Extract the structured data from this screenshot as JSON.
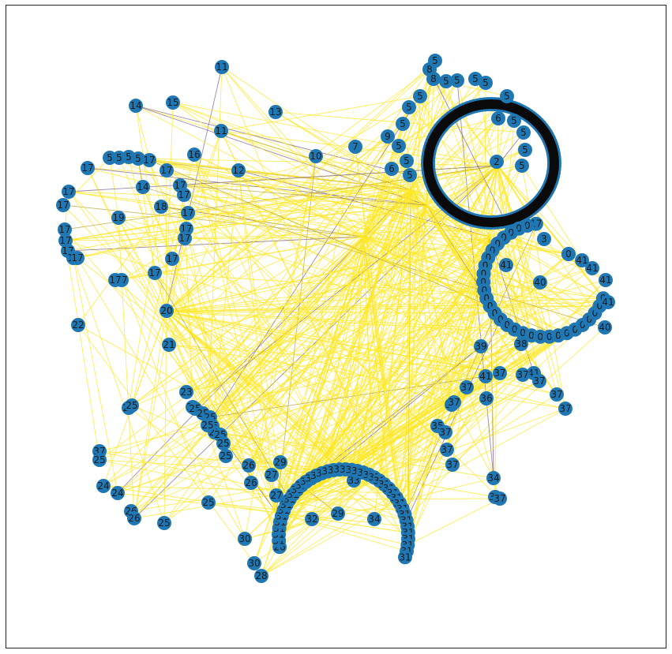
{
  "colors": {
    "background": "#ffffff",
    "frame": "#222222",
    "node": "#1f77b4",
    "edge_main": "#fde725",
    "edge_alt1": "#7b5f8f",
    "edge_alt2": "#b5a13a"
  },
  "nodes": [
    {
      "label": "11"
    },
    {
      "label": "11"
    },
    {
      "label": "14"
    },
    {
      "label": "15"
    },
    {
      "label": "13"
    },
    {
      "label": "16"
    },
    {
      "label": "12"
    },
    {
      "label": "10"
    },
    {
      "label": "7"
    },
    {
      "label": "9"
    },
    {
      "label": "6"
    },
    {
      "label": "8"
    },
    {
      "label": "8"
    },
    {
      "label": "6"
    },
    {
      "label": "2"
    },
    {
      "label": "3"
    },
    {
      "label": "38"
    },
    {
      "label": "39"
    },
    {
      "label": "36"
    },
    {
      "label": "35"
    },
    {
      "label": "34"
    },
    {
      "label": "34"
    },
    {
      "label": "33"
    },
    {
      "label": "32"
    },
    {
      "label": "29"
    },
    {
      "label": "29"
    },
    {
      "label": "27"
    },
    {
      "label": "27"
    },
    {
      "label": "28"
    },
    {
      "label": "30"
    },
    {
      "label": "30"
    },
    {
      "label": "24"
    },
    {
      "label": "24"
    },
    {
      "label": "22"
    },
    {
      "label": "23"
    },
    {
      "label": "21"
    },
    {
      "label": "20"
    },
    {
      "label": "19"
    },
    {
      "label": "18"
    },
    {
      "label": "14"
    },
    {
      "label": "40"
    },
    {
      "label": "40"
    },
    {
      "label": "41"
    },
    {
      "label": "41"
    },
    {
      "label": "41"
    },
    {
      "label": "5"
    },
    {
      "label": "5"
    },
    {
      "label": "5"
    },
    {
      "label": "5"
    },
    {
      "label": "5"
    },
    {
      "label": "5"
    },
    {
      "label": "5"
    },
    {
      "label": "5"
    },
    {
      "label": "5"
    },
    {
      "label": "5"
    },
    {
      "label": "5"
    },
    {
      "label": "5"
    },
    {
      "label": "5"
    },
    {
      "label": "5"
    },
    {
      "label": "5"
    },
    {
      "label": "5"
    },
    {
      "label": "5"
    },
    {
      "label": "5"
    },
    {
      "label": "5"
    },
    {
      "label": "5"
    },
    {
      "label": "17"
    },
    {
      "label": "17"
    },
    {
      "label": "17"
    },
    {
      "label": "17"
    },
    {
      "label": "17"
    },
    {
      "label": "17"
    },
    {
      "label": "17"
    },
    {
      "label": "17"
    },
    {
      "label": "17"
    },
    {
      "label": "17"
    },
    {
      "label": "17"
    },
    {
      "label": "17"
    },
    {
      "label": "17"
    },
    {
      "label": "17"
    },
    {
      "label": "17"
    },
    {
      "label": "17"
    },
    {
      "label": "17"
    },
    {
      "label": "17"
    },
    {
      "label": "17"
    },
    {
      "label": "17"
    },
    {
      "label": "0"
    },
    {
      "label": "0"
    },
    {
      "label": "0"
    },
    {
      "label": "0"
    },
    {
      "label": "0"
    },
    {
      "label": "0"
    },
    {
      "label": "0"
    },
    {
      "label": "0"
    },
    {
      "label": "0"
    },
    {
      "label": "0"
    },
    {
      "label": "0"
    },
    {
      "label": "0"
    },
    {
      "label": "0"
    },
    {
      "label": "0"
    },
    {
      "label": "0"
    },
    {
      "label": "0"
    },
    {
      "label": "0"
    },
    {
      "label": "0"
    },
    {
      "label": "0"
    },
    {
      "label": "0"
    },
    {
      "label": "0"
    },
    {
      "label": "0"
    },
    {
      "label": "0"
    },
    {
      "label": "0"
    },
    {
      "label": "0"
    },
    {
      "label": "0"
    },
    {
      "label": "0"
    },
    {
      "label": "0"
    },
    {
      "label": "0"
    },
    {
      "label": "0"
    },
    {
      "label": "41"
    },
    {
      "label": "41"
    },
    {
      "label": "41"
    },
    {
      "label": "41"
    },
    {
      "label": "41"
    },
    {
      "label": "37"
    },
    {
      "label": "37"
    },
    {
      "label": "37"
    },
    {
      "label": "37"
    },
    {
      "label": "37"
    },
    {
      "label": "37"
    },
    {
      "label": "37"
    },
    {
      "label": "37"
    },
    {
      "label": "37"
    },
    {
      "label": "37"
    },
    {
      "label": "37"
    },
    {
      "label": "37"
    },
    {
      "label": "37"
    },
    {
      "label": "37"
    },
    {
      "label": "25"
    },
    {
      "label": "25"
    },
    {
      "label": "25"
    },
    {
      "label": "25"
    },
    {
      "label": "25"
    },
    {
      "label": "25"
    },
    {
      "label": "25"
    },
    {
      "label": "25"
    },
    {
      "label": "25"
    },
    {
      "label": "25"
    },
    {
      "label": "25"
    },
    {
      "label": "25"
    },
    {
      "label": "25"
    },
    {
      "label": "25"
    },
    {
      "label": "25"
    },
    {
      "label": "26"
    },
    {
      "label": "26"
    },
    {
      "label": "26"
    },
    {
      "label": "26"
    },
    {
      "label": "26"
    },
    {
      "label": "31"
    },
    {
      "label": "31"
    },
    {
      "label": "31"
    },
    {
      "label": "31"
    },
    {
      "label": "31"
    },
    {
      "label": "31"
    },
    {
      "label": "31"
    },
    {
      "label": "31"
    },
    {
      "label": "31"
    },
    {
      "label": "31"
    },
    {
      "label": "31"
    },
    {
      "label": "31"
    },
    {
      "label": "31"
    },
    {
      "label": "31"
    },
    {
      "label": "31"
    },
    {
      "label": "31"
    },
    {
      "label": "31"
    },
    {
      "label": "31"
    },
    {
      "label": "31"
    },
    {
      "label": "31"
    },
    {
      "label": "31"
    },
    {
      "label": "31"
    },
    {
      "label": "31"
    },
    {
      "label": "31"
    },
    {
      "label": "31"
    },
    {
      "label": "31"
    },
    {
      "label": "31"
    },
    {
      "label": "31"
    },
    {
      "label": "31"
    },
    {
      "label": "31"
    },
    {
      "label": "31"
    },
    {
      "label": "31"
    },
    {
      "label": "31"
    },
    {
      "label": "31"
    },
    {
      "label": "31"
    },
    {
      "label": "31"
    },
    {
      "label": "31"
    },
    {
      "label": "31"
    },
    {
      "label": "31"
    },
    {
      "label": "31"
    }
  ]
}
